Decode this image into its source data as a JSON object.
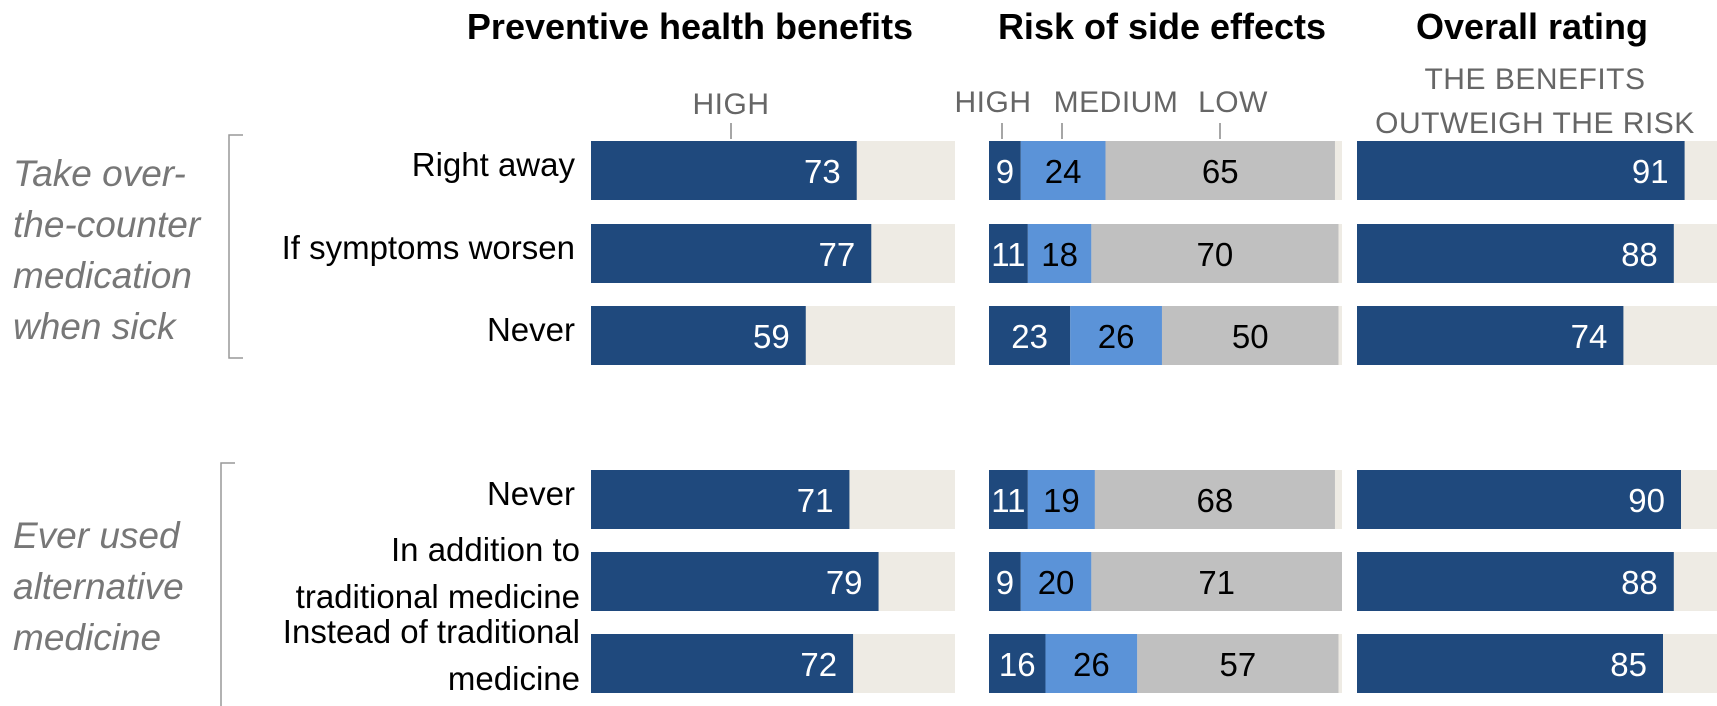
{
  "chart_data": {
    "type": "bar",
    "orientation": "horizontal",
    "stacked_panel": "Risk of side effects",
    "panels": [
      {
        "title": "Preventive health benefits",
        "column_labels": [
          "HIGH"
        ]
      },
      {
        "title": "Risk of side effects",
        "column_labels": [
          "HIGH",
          "MEDIUM",
          "LOW"
        ]
      },
      {
        "title": "Overall rating",
        "column_labels": [
          "THE BENEFITS",
          "OUTWEIGH THE RISK"
        ]
      }
    ],
    "groups": [
      {
        "label_lines": [
          "Take over-",
          "the-counter",
          "medication",
          "when sick"
        ],
        "rows": [
          0,
          1,
          2
        ]
      },
      {
        "label_lines": [
          "Ever used",
          "alternative",
          "medicine"
        ],
        "rows": [
          3,
          4,
          5
        ]
      }
    ],
    "categories": [
      {
        "lines": [
          "Right away"
        ]
      },
      {
        "lines": [
          "If symptoms worsen"
        ]
      },
      {
        "lines": [
          "Never"
        ]
      },
      {
        "lines": [
          "Never"
        ]
      },
      {
        "lines": [
          "In addition to",
          "traditional medicine"
        ]
      },
      {
        "lines": [
          "Instead of traditional",
          "medicine"
        ]
      }
    ],
    "series": [
      {
        "panel": 0,
        "name": "HIGH",
        "values": [
          73,
          77,
          59,
          71,
          79,
          72
        ]
      },
      {
        "panel": 1,
        "name": "HIGH",
        "values": [
          9,
          11,
          23,
          11,
          9,
          16
        ]
      },
      {
        "panel": 1,
        "name": "MEDIUM",
        "values": [
          24,
          18,
          26,
          19,
          20,
          26
        ]
      },
      {
        "panel": 1,
        "name": "LOW",
        "values": [
          65,
          70,
          50,
          68,
          71,
          57
        ]
      },
      {
        "panel": 2,
        "name": "THE BENEFITS OUTWEIGH THE RISK",
        "values": [
          91,
          88,
          74,
          90,
          88,
          85
        ]
      }
    ],
    "xlim": [
      0,
      100
    ],
    "colors": {
      "dark_blue": "#1f497d",
      "light_blue": "#5b93d8",
      "gray": "#c0c0c0",
      "track": "#eeebe4"
    }
  }
}
